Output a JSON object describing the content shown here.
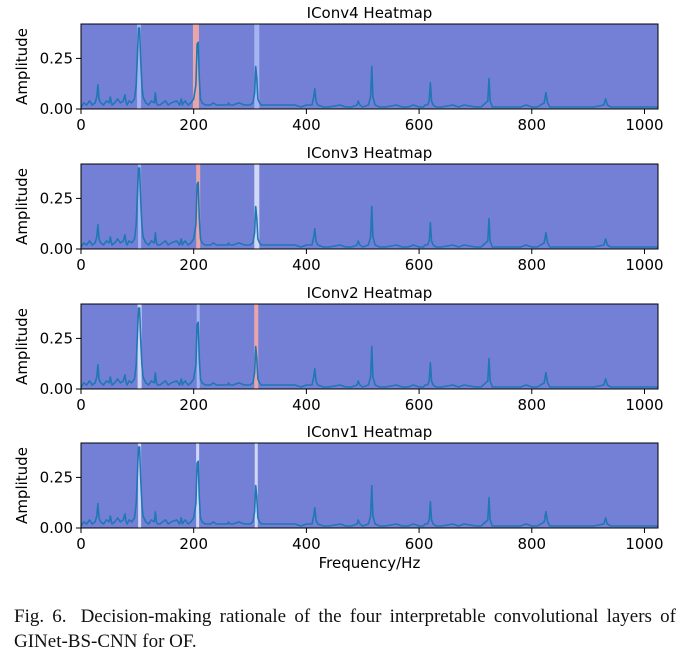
{
  "figure": {
    "xlabel": "Frequency/Hz",
    "ylabel": "Amplitude",
    "xlim": [
      0,
      1024
    ],
    "ylim": [
      0,
      0.42
    ],
    "xticks": [
      0,
      200,
      400,
      600,
      800,
      1000
    ],
    "yticks": [
      0.0,
      0.25
    ],
    "ytick_labels": [
      "0.00",
      "0.25"
    ],
    "heatmap_base_color": "#7480d6",
    "line_color": "#1f77b4"
  },
  "chart_data": [
    {
      "type": "line",
      "title": "IConv4 Heatmap",
      "highlights": [
        {
          "x": 103,
          "width": 4,
          "color": "#a9b7f2"
        },
        {
          "x": 204,
          "width": 6,
          "color": "#f0a6a6"
        },
        {
          "x": 312,
          "width": 5,
          "color": "#a9b7f2"
        }
      ]
    },
    {
      "type": "line",
      "title": "IConv3 Heatmap",
      "highlights": [
        {
          "x": 104,
          "width": 3,
          "color": "#a9b7f2"
        },
        {
          "x": 208,
          "width": 4,
          "color": "#f0a6a6"
        },
        {
          "x": 312,
          "width": 5,
          "color": "#d6dcf8"
        }
      ]
    },
    {
      "type": "line",
      "title": "IConv2 Heatmap",
      "highlights": [
        {
          "x": 104,
          "width": 4,
          "color": "#d6dcf8"
        },
        {
          "x": 208,
          "width": 3,
          "color": "#a9b7f2"
        },
        {
          "x": 311,
          "width": 4,
          "color": "#f0a6a6"
        }
      ]
    },
    {
      "type": "line",
      "title": "IConv1 Heatmap",
      "highlights": [
        {
          "x": 104,
          "width": 3,
          "color": "#d6dcf8"
        },
        {
          "x": 207,
          "width": 3,
          "color": "#d6dcf8"
        },
        {
          "x": 311,
          "width": 3,
          "color": "#d6dcf8"
        }
      ]
    }
  ],
  "spectrum": {
    "x": [
      0,
      5,
      10,
      15,
      20,
      25,
      28,
      30,
      32,
      35,
      40,
      45,
      50,
      52,
      55,
      60,
      65,
      70,
      75,
      78,
      80,
      82,
      85,
      90,
      95,
      98,
      100,
      102,
      104,
      106,
      108,
      110,
      115,
      120,
      125,
      130,
      132,
      134,
      136,
      140,
      145,
      150,
      155,
      160,
      170,
      175,
      178,
      180,
      182,
      185,
      190,
      195,
      200,
      204,
      206,
      208,
      210,
      212,
      215,
      220,
      230,
      235,
      240,
      250,
      260,
      262,
      264,
      270,
      280,
      290,
      300,
      305,
      308,
      310,
      312,
      314,
      317,
      320,
      330,
      340,
      350,
      360,
      370,
      380,
      390,
      400,
      410,
      413,
      415,
      417,
      420,
      430,
      440,
      460,
      470,
      480,
      490,
      492,
      495,
      500,
      510,
      514,
      516,
      518,
      522,
      530,
      540,
      560,
      570,
      580,
      590,
      600,
      608,
      610,
      615,
      618,
      620,
      622,
      625,
      630,
      640,
      660,
      670,
      680,
      700,
      710,
      722,
      724,
      726,
      730,
      740,
      760,
      780,
      790,
      800,
      810,
      822,
      825,
      828,
      832,
      840,
      860,
      880,
      900,
      910,
      928,
      931,
      934,
      940,
      960,
      980,
      1000,
      1024
    ],
    "y": [
      0.01,
      0.03,
      0.02,
      0.04,
      0.02,
      0.03,
      0.06,
      0.12,
      0.05,
      0.03,
      0.02,
      0.04,
      0.03,
      0.06,
      0.02,
      0.03,
      0.05,
      0.03,
      0.04,
      0.07,
      0.03,
      0.02,
      0.04,
      0.03,
      0.05,
      0.12,
      0.25,
      0.4,
      0.4,
      0.24,
      0.12,
      0.06,
      0.03,
      0.02,
      0.04,
      0.03,
      0.08,
      0.03,
      0.02,
      0.02,
      0.03,
      0.04,
      0.02,
      0.03,
      0.04,
      0.02,
      0.05,
      0.02,
      0.03,
      0.04,
      0.02,
      0.03,
      0.05,
      0.12,
      0.32,
      0.33,
      0.15,
      0.05,
      0.03,
      0.02,
      0.02,
      0.03,
      0.02,
      0.02,
      0.02,
      0.03,
      0.02,
      0.02,
      0.03,
      0.02,
      0.02,
      0.03,
      0.08,
      0.21,
      0.15,
      0.05,
      0.03,
      0.02,
      0.02,
      0.02,
      0.02,
      0.02,
      0.02,
      0.02,
      0.01,
      0.02,
      0.02,
      0.06,
      0.1,
      0.04,
      0.02,
      0.01,
      0.01,
      0.02,
      0.01,
      0.01,
      0.02,
      0.04,
      0.02,
      0.01,
      0.02,
      0.06,
      0.21,
      0.06,
      0.02,
      0.01,
      0.01,
      0.02,
      0.01,
      0.01,
      0.02,
      0.01,
      0.01,
      0.02,
      0.02,
      0.04,
      0.13,
      0.04,
      0.02,
      0.01,
      0.01,
      0.02,
      0.01,
      0.02,
      0.01,
      0.01,
      0.04,
      0.15,
      0.04,
      0.01,
      0.01,
      0.01,
      0.01,
      0.02,
      0.01,
      0.01,
      0.03,
      0.08,
      0.03,
      0.01,
      0.01,
      0.01,
      0.01,
      0.01,
      0.01,
      0.02,
      0.05,
      0.02,
      0.01,
      0.01,
      0.01,
      0.01,
      0.01
    ]
  },
  "caption": {
    "label": "Fig. 6.",
    "text": "Decision-making rationale of the four interpretable convolutional layers of GINet-BS-CNN for OF."
  }
}
